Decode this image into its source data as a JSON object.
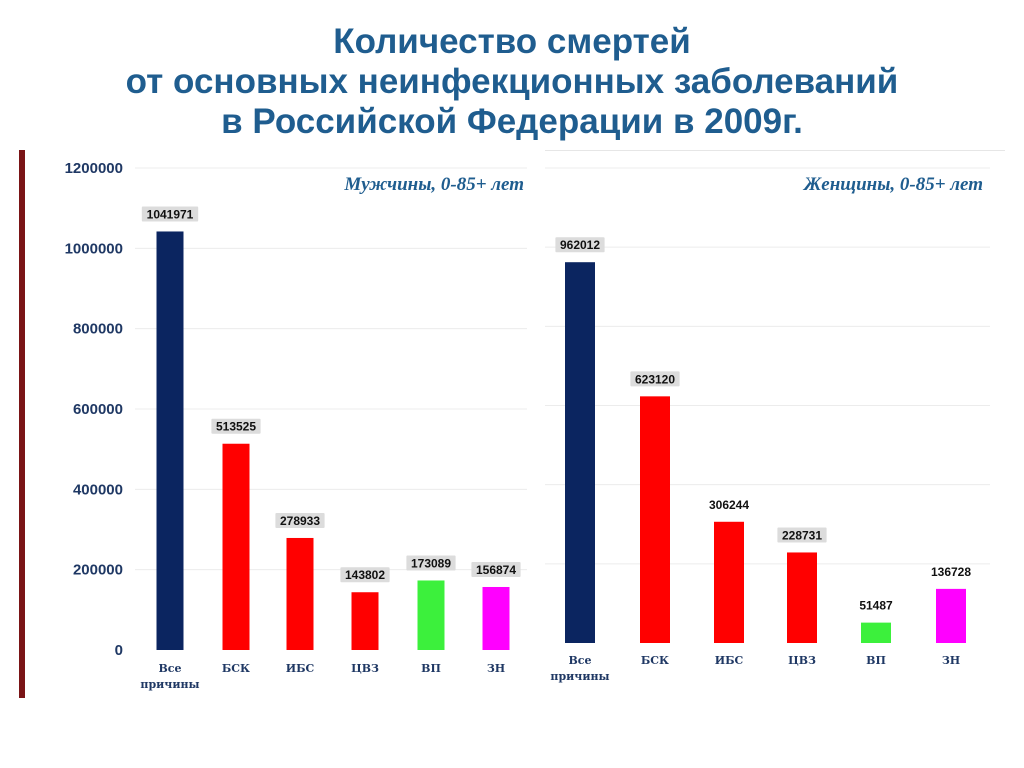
{
  "title": {
    "line1": "Количество смертей",
    "line2": "от основных неинфекционных заболеваний",
    "line3": "в Российской Федерации в 2009г."
  },
  "colors": {
    "title": "#1f5d8f",
    "axis_text": "#1f3864",
    "navy": "#0b2560",
    "red": "#ff0000",
    "green": "#3cf03c",
    "magenta": "#ff00ff",
    "accent_rule": "#7a1416"
  },
  "chart_data": [
    {
      "type": "bar",
      "title": "Мужчины, 0-85+ лет",
      "categories": [
        "Все причины",
        "БСК",
        "ИБС",
        "ЦВЗ",
        "ВП",
        "ЗН"
      ],
      "values": [
        1041971,
        513525,
        278933,
        143802,
        173089,
        156874
      ],
      "value_labels": [
        "1041971",
        "513525",
        "278933",
        "143802",
        "173089",
        "156874"
      ],
      "bar_colors": [
        "#0b2560",
        "#ff0000",
        "#ff0000",
        "#ff0000",
        "#3cf03c",
        "#ff00ff"
      ],
      "ylim": [
        0,
        1200000
      ],
      "yticks": [
        0,
        200000,
        400000,
        600000,
        800000,
        1000000,
        1200000
      ],
      "ytick_labels": [
        "0",
        "200000",
        "400000",
        "600000",
        "800000",
        "1000000",
        "1200000"
      ],
      "grid": true
    },
    {
      "type": "bar",
      "title": "Женщины, 0-85+ лет",
      "categories": [
        "Все причины",
        "БСК",
        "ИБС",
        "ЦВЗ",
        "ВП",
        "ЗН"
      ],
      "values": [
        962012,
        623120,
        306244,
        228731,
        51487,
        136728
      ],
      "value_labels": [
        "962012",
        "623120",
        "306244",
        "228731",
        "51487",
        "136728"
      ],
      "bar_colors": [
        "#0b2560",
        "#ff0000",
        "#ff0000",
        "#ff0000",
        "#3cf03c",
        "#ff00ff"
      ],
      "ylim": [
        0,
        1200000
      ],
      "grid": true
    }
  ]
}
